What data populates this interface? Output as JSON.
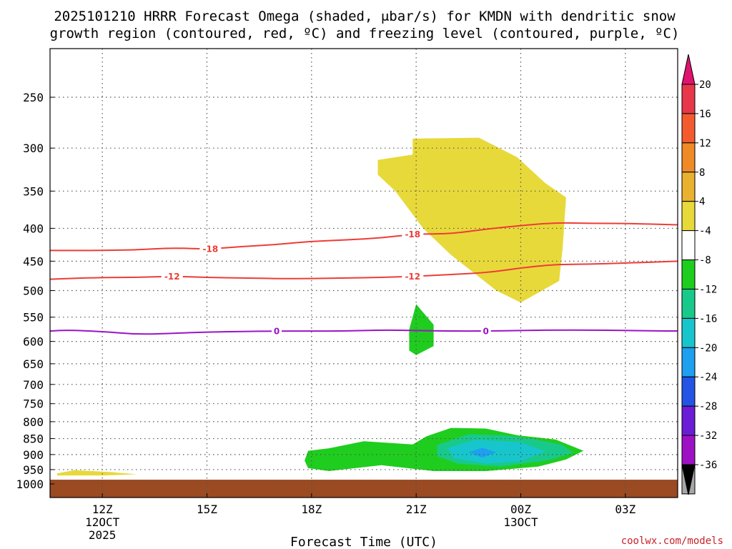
{
  "chart_data": {
    "type": "heatmap",
    "title_lines": [
      "2025101210 HRRR Forecast Omega (shaded, μbar/s) for KMDN with dendritic snow",
      "growth region (contoured, red, ºC) and freezing level (contoured, purple, ºC)"
    ],
    "xlabel": "Forecast Time (UTC)",
    "ylabel": "",
    "x_ticks": [
      {
        "label": "12Z",
        "sub": [
          "12OCT",
          "2025"
        ]
      },
      {
        "label": "15Z",
        "sub": []
      },
      {
        "label": "18Z",
        "sub": []
      },
      {
        "label": "21Z",
        "sub": []
      },
      {
        "label": "00Z",
        "sub": [
          "13OCT"
        ]
      },
      {
        "label": "03Z",
        "sub": []
      }
    ],
    "y_ticks": [
      250,
      300,
      350,
      400,
      450,
      500,
      550,
      600,
      650,
      700,
      750,
      800,
      850,
      900,
      950,
      1000
    ],
    "y_units": "hPa",
    "grid": true,
    "colorbar": {
      "levels": [
        20,
        16,
        12,
        8,
        4,
        -4,
        -8,
        -12,
        -16,
        -20,
        -24,
        -28,
        -32,
        -36
      ],
      "colors": [
        "#e8374a",
        "#f35b2e",
        "#ef8a26",
        "#e8b12f",
        "#e7d93a",
        "#ffffff",
        "#1fcd1f",
        "#19c98b",
        "#17c6cc",
        "#1e9ff0",
        "#2354e6",
        "#6a1dd4",
        "#9d11c4",
        "#a7a7a7"
      ],
      "top_color": "#e0136f",
      "bottom_color": "#000000"
    },
    "contours": [
      {
        "name": "-18",
        "variable": "temperature",
        "color": "#ee3c36",
        "x": [
          10.5,
          12,
          13,
          14,
          15,
          16,
          17,
          18,
          19,
          20,
          21,
          22,
          23,
          24,
          25,
          26,
          27,
          28.5
        ],
        "y": [
          433,
          433,
          432,
          429,
          431,
          427,
          424,
          419,
          417,
          414,
          408,
          408,
          401,
          396,
          392,
          393,
          393,
          395
        ],
        "labels": [
          {
            "text": "-18",
            "x": 15.1
          },
          {
            "text": "-18",
            "x": 20.9
          }
        ]
      },
      {
        "name": "-12",
        "variable": "temperature",
        "color": "#ee3c36",
        "x": [
          10.5,
          12,
          13,
          14,
          15,
          16,
          17,
          18,
          19,
          20,
          21,
          22,
          23,
          24,
          25,
          26,
          27,
          28.5
        ],
        "y": [
          480,
          477,
          477,
          475,
          477,
          478,
          479,
          479,
          478,
          477,
          475,
          472,
          469,
          461,
          455,
          455,
          453,
          450
        ],
        "labels": [
          {
            "text": "-12",
            "x": 14.0
          },
          {
            "text": "-12",
            "x": 20.9
          }
        ]
      },
      {
        "name": "0",
        "variable": "freezing level",
        "color": "#9b14c6",
        "x": [
          10.5,
          11,
          12,
          13,
          14,
          15,
          16,
          17,
          18,
          19,
          20,
          21,
          22,
          23,
          24,
          25,
          26,
          27,
          28.5
        ],
        "y": [
          578,
          576,
          579,
          585,
          583,
          580,
          579,
          578,
          578,
          578,
          576,
          577,
          578,
          578,
          577,
          576,
          576,
          577,
          578
        ],
        "labels": [
          {
            "text": "0",
            "x": 17.0
          },
          {
            "text": "0",
            "x": 23.0
          }
        ]
      }
    ],
    "shaded_regions": [
      {
        "name": "omega-pos-4-8-upper",
        "value_range": [
          4,
          8
        ],
        "color": "#e7d93a",
        "points": [
          [
            19.9,
            313
          ],
          [
            20.9,
            307
          ],
          [
            20.9,
            290
          ],
          [
            22.8,
            289
          ],
          [
            23.9,
            310
          ],
          [
            24.7,
            340
          ],
          [
            25.3,
            358
          ],
          [
            25.2,
            430
          ],
          [
            25.1,
            483
          ],
          [
            24.0,
            522
          ],
          [
            23.3,
            500
          ],
          [
            22.0,
            440
          ],
          [
            21.2,
            400
          ],
          [
            20.4,
            350
          ],
          [
            19.9,
            330
          ]
        ]
      },
      {
        "name": "omega-pos-4-8-lower",
        "value_range": [
          4,
          8
        ],
        "color": "#e7d93a",
        "points": [
          [
            10.7,
            963
          ],
          [
            11.2,
            952
          ],
          [
            12.2,
            958
          ],
          [
            13.0,
            966
          ],
          [
            12.0,
            970
          ],
          [
            10.7,
            970
          ]
        ]
      },
      {
        "name": "omega-neg-4-8-mid",
        "value_range": [
          -8,
          -4
        ],
        "color": "#1fcd1f",
        "points": [
          [
            20.8,
            575
          ],
          [
            21.0,
            525
          ],
          [
            21.5,
            565
          ],
          [
            21.5,
            610
          ],
          [
            21.0,
            630
          ],
          [
            20.8,
            620
          ]
        ]
      },
      {
        "name": "omega-neg-4-8-low",
        "value_range": [
          -8,
          -4
        ],
        "color": "#1fcd1f",
        "points": [
          [
            17.8,
            920
          ],
          [
            17.9,
            888
          ],
          [
            18.5,
            880
          ],
          [
            19.5,
            858
          ],
          [
            20.9,
            868
          ],
          [
            21.3,
            843
          ],
          [
            22.0,
            818
          ],
          [
            23.0,
            820
          ],
          [
            23.9,
            840
          ],
          [
            25.0,
            853
          ],
          [
            25.8,
            888
          ],
          [
            25.3,
            916
          ],
          [
            24.5,
            940
          ],
          [
            23.0,
            955
          ],
          [
            21.5,
            955
          ],
          [
            20.0,
            935
          ],
          [
            18.5,
            955
          ],
          [
            17.9,
            945
          ]
        ]
      },
      {
        "name": "omega-neg-8-12",
        "value_range": [
          -12,
          -8
        ],
        "color": "#19c98b",
        "points": [
          [
            21.6,
            870
          ],
          [
            22.5,
            837
          ],
          [
            23.5,
            840
          ],
          [
            24.3,
            850
          ],
          [
            25.2,
            870
          ],
          [
            25.5,
            895
          ],
          [
            24.8,
            918
          ],
          [
            23.4,
            940
          ],
          [
            22.2,
            930
          ],
          [
            21.6,
            905
          ]
        ]
      },
      {
        "name": "omega-neg-12-16",
        "value_range": [
          -16,
          -12
        ],
        "color": "#17c6cc",
        "points": [
          [
            21.9,
            880
          ],
          [
            22.7,
            853
          ],
          [
            24.0,
            862
          ],
          [
            24.7,
            890
          ],
          [
            24.0,
            922
          ],
          [
            23.0,
            930
          ],
          [
            22.1,
            912
          ]
        ]
      },
      {
        "name": "omega-neg-16-20",
        "value_range": [
          -20,
          -16
        ],
        "color": "#1e9ff0",
        "points": [
          [
            22.5,
            893
          ],
          [
            22.9,
            878
          ],
          [
            23.3,
            893
          ],
          [
            22.9,
            910
          ]
        ]
      }
    ],
    "surface": {
      "name": "ground",
      "color": "#9b4a22",
      "from_pressure": 985
    },
    "credit": "coolwx.com/models"
  }
}
